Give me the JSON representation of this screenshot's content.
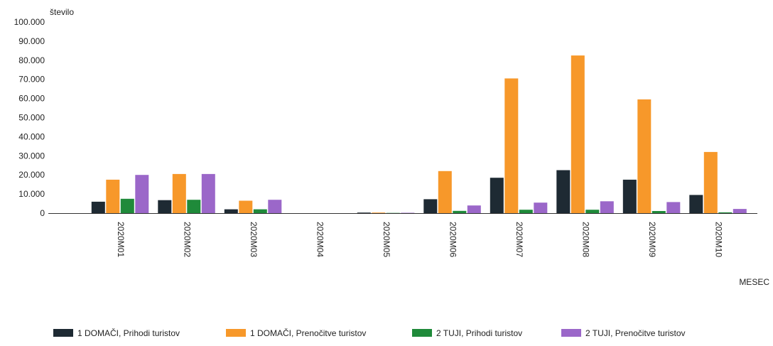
{
  "chart_data": {
    "type": "bar",
    "ylabel": "število",
    "xlabel": "MESEC",
    "ylim": [
      0,
      100000
    ],
    "yticks": [
      0,
      10000,
      20000,
      30000,
      40000,
      50000,
      60000,
      70000,
      80000,
      90000,
      100000
    ],
    "ytick_labels": [
      "0",
      "10.000",
      "20.000",
      "30.000",
      "40.000",
      "50.000",
      "60.000",
      "70.000",
      "80.000",
      "90.000",
      "100.000"
    ],
    "categories": [
      "2020M01",
      "2020M02",
      "2020M03",
      "2020M04",
      "2020M05",
      "2020M06",
      "2020M07",
      "2020M08",
      "2020M09",
      "2020M10"
    ],
    "series": [
      {
        "name": "1 DOMAČI, Prihodi turistov",
        "color": "#1e2a33",
        "values": [
          6000,
          6800,
          2000,
          0,
          300,
          7300,
          18500,
          22500,
          17500,
          9500
        ]
      },
      {
        "name": "1 DOMAČI, Prenočitve turistov",
        "color": "#f7982a",
        "values": [
          17500,
          20500,
          6500,
          0,
          300,
          22000,
          70500,
          82500,
          59500,
          32000
        ]
      },
      {
        "name": "2 TUJI, Prihodi turistov",
        "color": "#1f8a3a",
        "values": [
          7500,
          7000,
          2000,
          0,
          100,
          1200,
          1800,
          1800,
          1100,
          400
        ]
      },
      {
        "name": "2 TUJI, Prenočitve turistov",
        "color": "#9b67c9",
        "values": [
          20000,
          20500,
          7000,
          0,
          200,
          4000,
          5500,
          6200,
          5800,
          2200
        ]
      }
    ],
    "grid": false,
    "legend_position": "bottom"
  }
}
